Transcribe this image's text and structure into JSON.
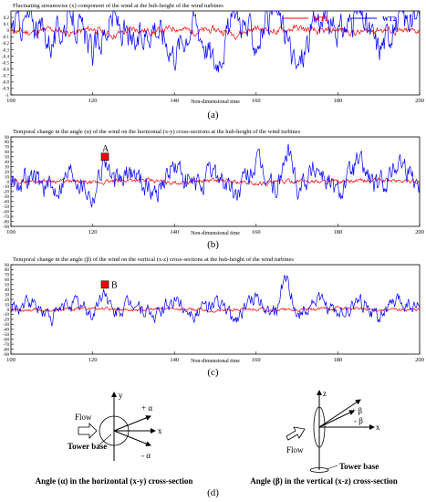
{
  "panels": [
    {
      "id": "a",
      "label": "(a)",
      "chart_data": {
        "type": "line",
        "title": "Fluctuating streamwise (x) component of the wind at the hub-height of the wind turbines",
        "xlabel": "Non-dimensional time",
        "ylabel": "",
        "xlim": [
          100,
          200
        ],
        "ylim": [
          -1,
          0.3
        ],
        "xticks": [
          "100",
          "120",
          "140",
          "160",
          "180",
          "200"
        ],
        "yticks": [
          "0.2",
          "0.1",
          "0",
          "-0.1",
          "-0.2",
          "-0.3",
          "-0.4",
          "-0.5",
          "-0.6",
          "-0.7",
          "-0.8",
          "-0.9",
          "-1"
        ],
        "legend_position": "top-right",
        "series": [
          {
            "name": "WT1",
            "color": "#ff0000",
            "amplitude": 0.05,
            "offset": 0,
            "x": [
              100,
              105,
              110,
              115,
              120,
              125,
              130,
              135,
              140,
              145,
              150,
              155,
              160,
              165,
              170,
              175,
              180,
              185,
              190,
              195,
              200
            ],
            "values": [
              0,
              -0.04,
              0.02,
              -0.05,
              0.03,
              -0.08,
              0.02,
              -0.03,
              0.04,
              -0.02,
              0.01,
              -0.06,
              0.03,
              -0.02,
              0.04,
              -0.03,
              0.01,
              -0.04,
              0.02,
              -0.03,
              0
            ]
          },
          {
            "name": "WT2",
            "color": "#0000ff",
            "amplitude": 0.22,
            "offset": 0.03,
            "x": [
              100,
              105,
              110,
              115,
              120,
              125,
              130,
              135,
              140,
              145,
              150,
              155,
              160,
              165,
              170,
              175,
              180,
              185,
              190,
              195,
              200
            ],
            "values": [
              0.05,
              0.15,
              -0.2,
              0.2,
              -0.4,
              0.18,
              -0.3,
              0.1,
              -0.35,
              0.15,
              -0.55,
              0.25,
              -0.2,
              0.3,
              -0.65,
              0.2,
              -0.1,
              0.25,
              -0.3,
              0.15,
              0.1
            ]
          }
        ]
      }
    },
    {
      "id": "b",
      "label": "(b)",
      "marker": {
        "text": "A",
        "color": "#ff0000",
        "x": 123,
        "y": 50
      },
      "chart_data": {
        "type": "line",
        "title": "Temporal change in the angle (α) of the wind on the horizontal (x-y) cross-sections at the hub-height of the wind turbines",
        "xlabel": "Non-dimensional time",
        "ylabel": "",
        "xlim": [
          100,
          200
        ],
        "ylim": [
          -90,
          90
        ],
        "xticks": [
          "100",
          "120",
          "140",
          "160",
          "180",
          "200"
        ],
        "yticks": [
          "90",
          "80",
          "70",
          "60",
          "50",
          "40",
          "30",
          "20",
          "10",
          "0",
          "-10",
          "-20",
          "-30",
          "-40",
          "-50",
          "-60",
          "-70",
          "-80",
          "-90"
        ],
        "series": [
          {
            "name": "",
            "color": "#ff0000",
            "amplitude": 4,
            "offset": 0,
            "x": [
              100,
              110,
              120,
              130,
              140,
              150,
              160,
              170,
              180,
              190,
              200
            ],
            "values": [
              0,
              2,
              -3,
              4,
              -2,
              3,
              -4,
              2,
              -1,
              3,
              0
            ]
          },
          {
            "name": "",
            "color": "#0000ff",
            "amplitude": 22,
            "offset": 0,
            "x": [
              100,
              105,
              110,
              115,
              120,
              123,
              125,
              130,
              135,
              140,
              145,
              150,
              155,
              160,
              165,
              168,
              170,
              175,
              180,
              185,
              190,
              195,
              200
            ],
            "values": [
              0,
              10,
              -20,
              25,
              -30,
              50,
              -10,
              20,
              -25,
              30,
              -15,
              20,
              -30,
              35,
              -20,
              65,
              -10,
              30,
              -25,
              40,
              -20,
              45,
              0
            ]
          }
        ]
      }
    },
    {
      "id": "c",
      "label": "(c)",
      "marker": {
        "text": "B",
        "color": "#ff0000",
        "x": 123,
        "y": 50
      },
      "chart_data": {
        "type": "line",
        "title": "Temporal change in the angle (β) of the wind on the vertical (x-z) cross-sections at the hub-height of the wind turbines",
        "xlabel": "Non-dimensional time",
        "ylabel": "",
        "xlim": [
          100,
          200
        ],
        "ylim": [
          -90,
          90
        ],
        "xticks": [
          "100",
          "120",
          "140",
          "160",
          "180",
          "200"
        ],
        "yticks": [
          "90",
          "80",
          "70",
          "60",
          "50",
          "40",
          "30",
          "20",
          "10",
          "0",
          "-10",
          "-20",
          "-30",
          "-40",
          "-50",
          "-60",
          "-70",
          "-80",
          "-90"
        ],
        "series": [
          {
            "name": "",
            "color": "#ff0000",
            "amplitude": 3,
            "offset": 0,
            "x": [
              100,
              110,
              120,
              130,
              140,
              150,
              160,
              170,
              180,
              190,
              200
            ],
            "values": [
              0,
              -2,
              3,
              -1,
              2,
              -3,
              1,
              -2,
              3,
              -1,
              0
            ]
          },
          {
            "name": "",
            "color": "#0000ff",
            "amplitude": 14,
            "offset": 0,
            "x": [
              100,
              105,
              110,
              115,
              120,
              123,
              125,
              130,
              135,
              140,
              145,
              150,
              155,
              160,
              165,
              167,
              170,
              175,
              180,
              185,
              190,
              195,
              200
            ],
            "values": [
              0,
              12,
              -15,
              18,
              -10,
              40,
              -12,
              15,
              -18,
              20,
              -10,
              15,
              -20,
              25,
              -12,
              75,
              -10,
              20,
              -15,
              18,
              -12,
              15,
              0
            ]
          }
        ]
      }
    }
  ],
  "diagram": {
    "label": "(d)",
    "left": {
      "caption": "Angle (α) in the horizontal (x-y) cross-section",
      "flow": "Flow",
      "tower": "Tower base",
      "axis_y": "y",
      "axis_x": "x",
      "plus": "+ α",
      "minus": "- α"
    },
    "right": {
      "caption": "Angle (β) in the vertical (x-z) cross-section",
      "flow": "Flow",
      "tower": "Tower base",
      "axis_z": "z",
      "axis_x": "x",
      "plus": "+ β",
      "minus": "- β"
    }
  }
}
